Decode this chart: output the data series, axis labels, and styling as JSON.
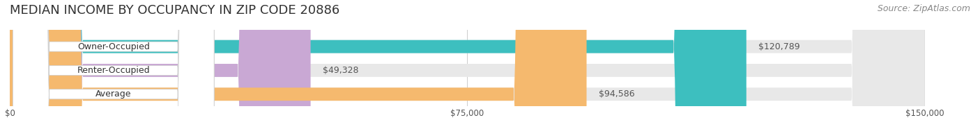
{
  "title": "MEDIAN INCOME BY OCCUPANCY IN ZIP CODE 20886",
  "source": "Source: ZipAtlas.com",
  "categories": [
    "Owner-Occupied",
    "Renter-Occupied",
    "Average"
  ],
  "values": [
    120789,
    49328,
    94586
  ],
  "bar_colors": [
    "#3dbfbf",
    "#c9a8d4",
    "#f5b96e"
  ],
  "bar_bg_color": "#eeeeee",
  "label_texts": [
    "$120,789",
    "$49,328",
    "$94,586"
  ],
  "x_ticks": [
    0,
    75000,
    150000
  ],
  "x_tick_labels": [
    "$0",
    "$75,000",
    "$150,000"
  ],
  "xlim": [
    0,
    150000
  ],
  "background_color": "#ffffff",
  "title_fontsize": 13,
  "bar_height": 0.55,
  "label_fontsize": 9,
  "category_fontsize": 9,
  "source_fontsize": 9
}
